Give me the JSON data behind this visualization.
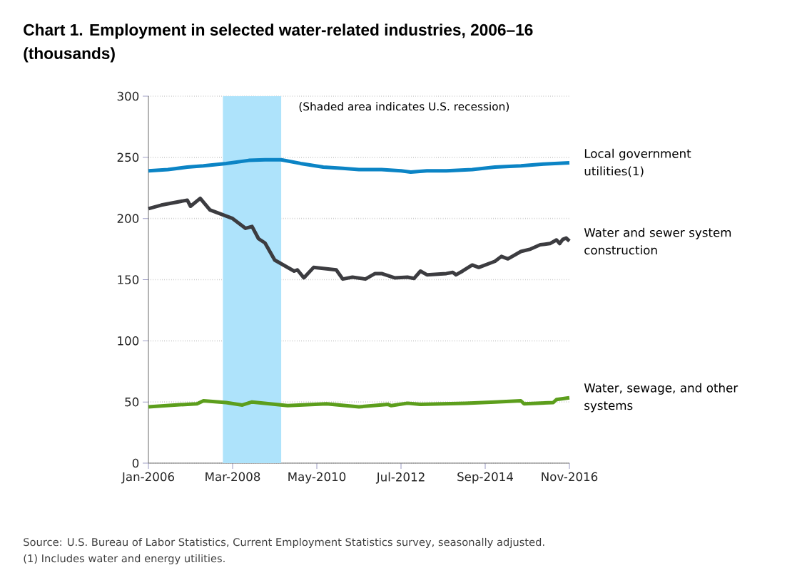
{
  "chart_data": {
    "type": "line",
    "title": "Chart 1. Employment in selected water-related industries, 2006–16",
    "subtitle": "(thousands)",
    "xlim": [
      "2006-01",
      "2016-11"
    ],
    "xticks": [
      {
        "value": "2006-01",
        "label": "Jan-2006"
      },
      {
        "value": "2008-03",
        "label": "Mar-2008"
      },
      {
        "value": "2010-05",
        "label": "May-2010"
      },
      {
        "value": "2012-07",
        "label": "Jul-2012"
      },
      {
        "value": "2014-09",
        "label": "Sep-2014"
      },
      {
        "value": "2016-11",
        "label": "Nov-2016"
      }
    ],
    "ylim": [
      0,
      300
    ],
    "yticks": [
      0,
      50,
      100,
      150,
      200,
      250,
      300
    ],
    "grid": "y",
    "bands": [
      {
        "axis": "x",
        "from": "2007-12",
        "to": "2009-06",
        "label": "(Shaded area indicates U.S. recession)",
        "color": "#aee3fb"
      }
    ],
    "series": [
      {
        "name": "Local government utilities(1)",
        "color": "#0b84c5",
        "x": [
          "2006-01",
          "2006-07",
          "2007-01",
          "2007-06",
          "2008-01",
          "2008-08",
          "2009-01",
          "2009-06",
          "2009-12",
          "2010-07",
          "2011-01",
          "2011-06",
          "2012-01",
          "2012-07",
          "2012-10",
          "2013-03",
          "2013-09",
          "2014-05",
          "2014-12",
          "2015-08",
          "2016-03",
          "2016-11"
        ],
        "values": [
          239,
          240,
          242,
          243,
          245,
          247.5,
          248,
          248,
          245,
          242,
          241,
          240,
          240,
          239,
          238,
          239,
          239,
          240,
          242,
          243,
          244.5,
          245.5
        ]
      },
      {
        "name": "Water and sewer system construction",
        "color": "#3c3c40",
        "x": [
          "2006-01",
          "2006-05",
          "2007-01",
          "2007-02",
          "2007-05",
          "2007-08",
          "2008-03",
          "2008-07",
          "2008-09",
          "2008-11",
          "2009-01",
          "2009-04",
          "2009-10",
          "2009-11",
          "2010-01",
          "2010-04",
          "2010-11",
          "2011-01",
          "2011-04",
          "2011-08",
          "2011-11",
          "2012-01",
          "2012-05",
          "2012-09",
          "2012-11",
          "2013-01",
          "2013-03",
          "2013-09",
          "2013-11",
          "2013-12",
          "2014-02",
          "2014-05",
          "2014-07",
          "2014-12",
          "2015-02",
          "2015-04",
          "2015-08",
          "2015-11",
          "2016-02",
          "2016-05",
          "2016-07",
          "2016-08",
          "2016-09",
          "2016-10",
          "2016-11"
        ],
        "values": [
          208,
          211,
          215,
          210,
          216.5,
          207,
          200,
          192,
          193.5,
          183.5,
          180,
          166,
          157,
          158,
          151.5,
          160,
          158,
          150.5,
          152,
          150.5,
          155,
          155,
          151.5,
          152,
          151,
          157,
          154,
          155,
          156,
          154,
          157,
          162,
          160,
          165,
          169,
          167,
          173,
          175,
          178.5,
          179.5,
          182.5,
          179.5,
          183,
          184,
          181.5
        ]
      },
      {
        "name": "Water, sewage, and other systems",
        "color": "#5c9e1c",
        "x": [
          "2006-01",
          "2006-09",
          "2007-04",
          "2007-06",
          "2008-01",
          "2008-06",
          "2008-09",
          "2009-08",
          "2010-08",
          "2011-06",
          "2012-03",
          "2012-04",
          "2012-09",
          "2013-01",
          "2014-03",
          "2014-12",
          "2015-08",
          "2015-09",
          "2016-06",
          "2016-07",
          "2016-11"
        ],
        "values": [
          46,
          47.5,
          48.5,
          51,
          49.5,
          47.5,
          50,
          47,
          48.5,
          46,
          48,
          47,
          49,
          48,
          49,
          50,
          51,
          48.5,
          49.5,
          52,
          53.5
        ]
      }
    ],
    "annotations": [
      "Source: U.S. Bureau of Labor Statistics, Current Employment Statistics survey, seasonally adjusted.",
      "(1) Includes water and energy utilities."
    ]
  }
}
